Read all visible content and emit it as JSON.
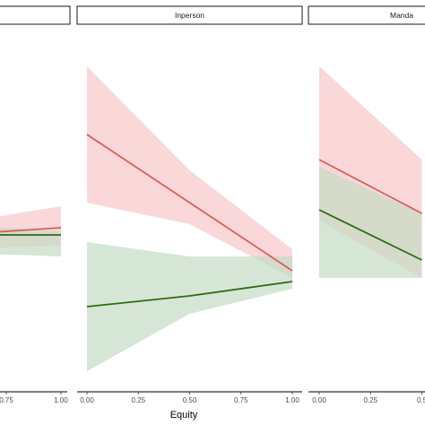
{
  "colors": {
    "series_a_line": "#d95f59",
    "series_a_band": "#f8c9cc",
    "series_b_line": "#2e6b12",
    "series_b_band": "#c5dcc4"
  },
  "x_axis": {
    "title": "Equity",
    "tick_labels": [
      "0.00",
      "0.25",
      "0.50",
      "0.75",
      "1.00"
    ]
  },
  "chart_data": [
    {
      "type": "line",
      "panel": "left (label cut off)",
      "strip_label": "",
      "x": [
        0.5,
        1.0
      ],
      "xlim": [
        0.0,
        1.0
      ],
      "x_tick_labels_visible": [
        "0.75",
        "1.00"
      ],
      "ylim": [
        0,
        1
      ],
      "series": [
        {
          "color_key": "a",
          "values": [
            0.42,
            0.44
          ],
          "lower": [
            0.38,
            0.39
          ],
          "upper": [
            0.45,
            0.5
          ]
        },
        {
          "color_key": "b",
          "values": [
            0.42,
            0.42
          ],
          "lower": [
            0.37,
            0.36
          ],
          "upper": [
            0.45,
            0.43
          ]
        }
      ]
    },
    {
      "type": "line",
      "panel": "center",
      "strip_label": "Inperson",
      "x": [
        0.0,
        0.5,
        1.0
      ],
      "xlim": [
        0.0,
        1.0
      ],
      "x_tick_labels_visible": [
        "0.00",
        "0.25",
        "0.50",
        "0.75",
        "1.00"
      ],
      "ylim": [
        0,
        1
      ],
      "series": [
        {
          "color_key": "a",
          "values": [
            0.7,
            0.51,
            0.32
          ],
          "lower": [
            0.51,
            0.45,
            0.3
          ],
          "upper": [
            0.89,
            0.6,
            0.38
          ]
        },
        {
          "color_key": "b",
          "values": [
            0.22,
            0.25,
            0.29
          ],
          "lower": [
            0.04,
            0.2,
            0.27
          ],
          "upper": [
            0.4,
            0.36,
            0.36
          ]
        }
      ]
    },
    {
      "type": "line",
      "panel": "right (label cut off)",
      "strip_label": "Manda",
      "x": [
        0.0,
        0.5
      ],
      "xlim": [
        0.0,
        1.0
      ],
      "x_tick_labels_visible": [
        "0.00",
        "0.25",
        "0.5"
      ],
      "ylim": [
        0,
        1
      ],
      "series": [
        {
          "color_key": "a",
          "values": [
            0.63,
            0.48
          ],
          "lower": [
            0.46,
            0.3
          ],
          "upper": [
            0.89,
            0.63
          ]
        },
        {
          "color_key": "b",
          "values": [
            0.49,
            0.35
          ],
          "lower": [
            0.3,
            0.3
          ],
          "upper": [
            0.61,
            0.48
          ]
        }
      ]
    }
  ]
}
